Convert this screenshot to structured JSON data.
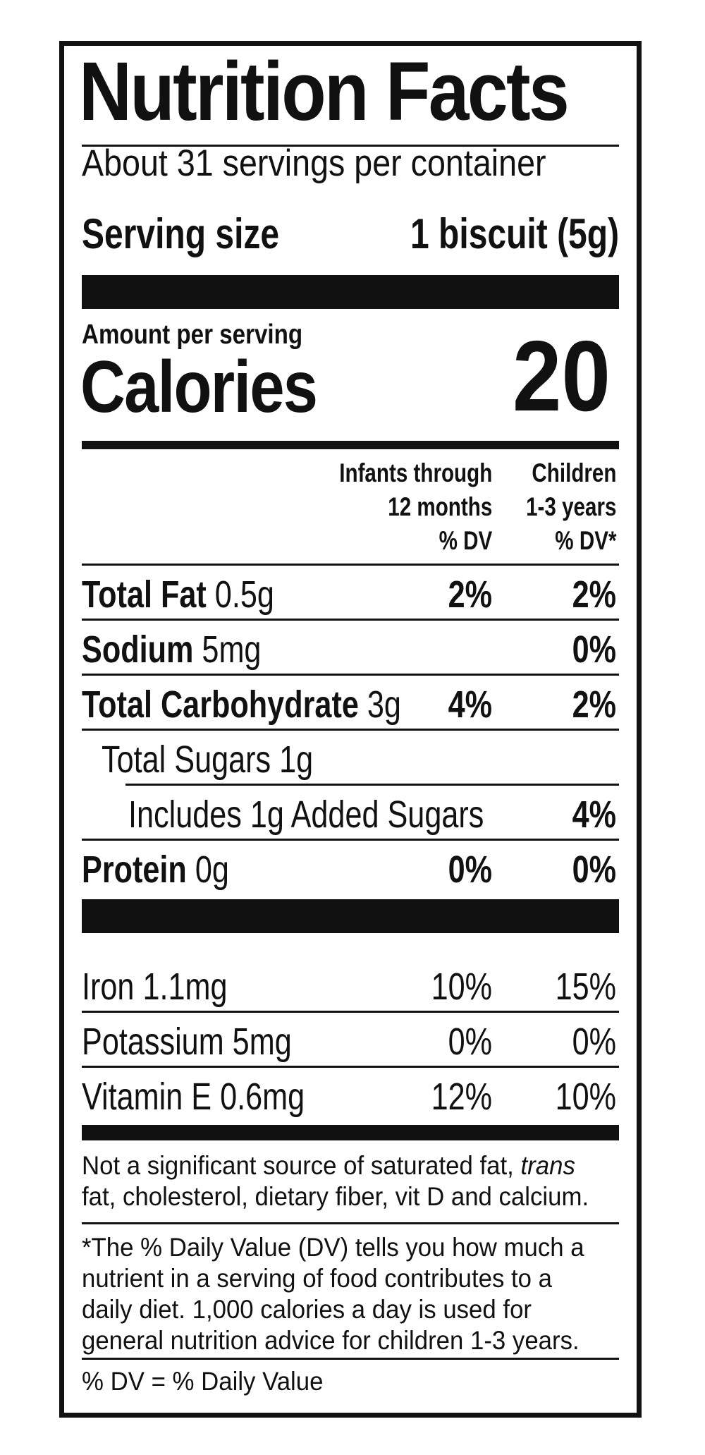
{
  "title": "Nutrition Facts",
  "servings_per_container": "About 31 servings per container",
  "serving_size_label": "Serving size",
  "serving_size_value": "1 biscuit (5g)",
  "amount_per_serving": "Amount per serving",
  "calories_label": "Calories",
  "calories_value": "20",
  "columns": {
    "col1_line1": "Infants through",
    "col1_line2": "12 months",
    "col1_line3": "% DV",
    "col2_line1": "Children",
    "col2_line2": "1-3 years",
    "col2_line3": "% DV*"
  },
  "nutrients": [
    {
      "name": "Total Fat",
      "amount": "0.5g",
      "infant_dv": "2%",
      "child_dv": "2%"
    },
    {
      "name": "Sodium",
      "amount": "5mg",
      "infant_dv": "",
      "child_dv": "0%"
    },
    {
      "name": "Total Carbohydrate",
      "amount": "3g",
      "infant_dv": "4%",
      "child_dv": "2%"
    },
    {
      "name": "Total Sugars 1g",
      "amount": "",
      "infant_dv": "",
      "child_dv": ""
    },
    {
      "name": "Includes 1g Added Sugars",
      "amount": "",
      "infant_dv": "",
      "child_dv": "4%"
    },
    {
      "name": "Protein",
      "amount": "0g",
      "infant_dv": "0%",
      "child_dv": "0%"
    }
  ],
  "vitamins": [
    {
      "name": "Iron 1.1mg",
      "infant_dv": "10%",
      "child_dv": "15%"
    },
    {
      "name": "Potassium 5mg",
      "infant_dv": "0%",
      "child_dv": "0%"
    },
    {
      "name": "Vitamin E 0.6mg",
      "infant_dv": "12%",
      "child_dv": "10%"
    }
  ],
  "not_significant_prefix": "Not a significant source of saturated fat,",
  "not_significant_italic": "trans",
  "not_significant_suffix": "fat, cholesterol, dietary fiber, vit D and calcium.",
  "dv_footnote": "*The % Daily Value (DV) tells you how much a nutrient in a serving of food contributes to a daily diet. 1,000 calories a day is used for general nutrition advice for children 1-3 years.",
  "dv_definition": "% DV = % Daily Value"
}
